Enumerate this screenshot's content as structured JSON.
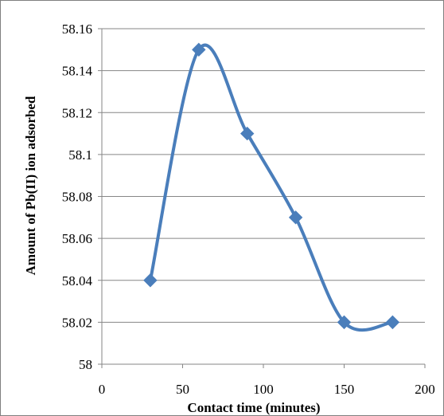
{
  "chart_data": {
    "type": "line",
    "smooth": true,
    "title": "",
    "xlabel": "Contact time (minutes)",
    "ylabel": "Amount of Pb(II) ion adsorbed",
    "xlim": [
      0,
      200
    ],
    "ylim": [
      58,
      58.16
    ],
    "x_ticks": [
      0,
      50,
      100,
      150,
      200
    ],
    "x_tick_labels": [
      "0",
      "50",
      "100",
      "150",
      "200"
    ],
    "y_ticks": [
      58,
      58.02,
      58.04,
      58.06,
      58.08,
      58.1,
      58.12,
      58.14,
      58.16
    ],
    "y_tick_labels": [
      "58",
      "58.02",
      "58.04",
      "58.06",
      "58.08",
      "58.1",
      "58.12",
      "58.14",
      "58.16"
    ],
    "grid": "horizontal",
    "legend": "none",
    "marker": "diamond",
    "series": [
      {
        "color": "#4a7ebb",
        "x": [
          30,
          60,
          90,
          120,
          150,
          180
        ],
        "y": [
          58.04,
          58.15,
          58.11,
          58.07,
          58.02,
          58.02
        ]
      }
    ]
  }
}
